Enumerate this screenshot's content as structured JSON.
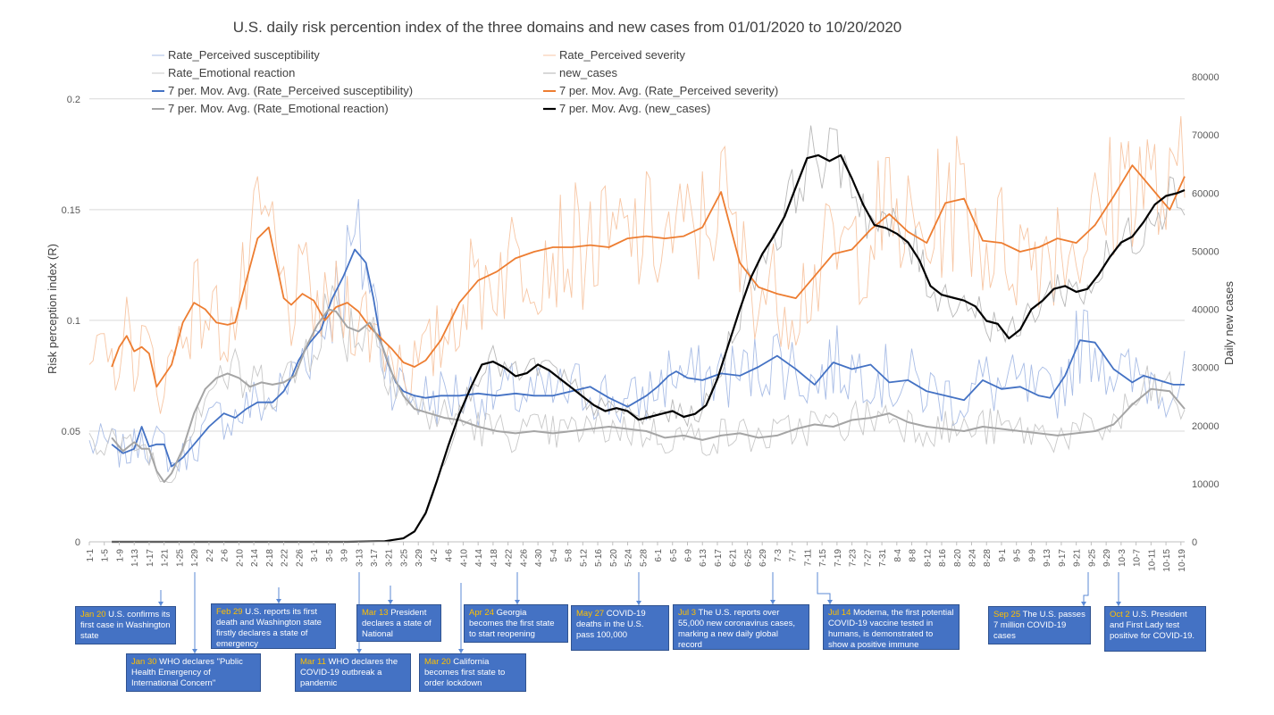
{
  "chart_data": {
    "type": "line",
    "title": "U.S. daily risk percention index of the three domains and new cases from 01/01/2020 to 10/20/2020",
    "ylabel": "Risk perception index (R)",
    "y2label": "Daily new cases",
    "ylim": [
      0,
      0.21
    ],
    "y2lim": [
      0,
      80000
    ],
    "yticks": [
      "0",
      "0.05",
      "0.1",
      "0.15",
      "0.2"
    ],
    "y2ticks": [
      "0",
      "10000",
      "20000",
      "30000",
      "40000",
      "50000",
      "60000",
      "70000",
      "80000"
    ],
    "xlim_day": [
      1,
      294
    ],
    "xlabels": [
      "1-1",
      "1-5",
      "1-9",
      "1-13",
      "1-17",
      "1-21",
      "1-25",
      "1-29",
      "2-2",
      "2-6",
      "2-10",
      "2-14",
      "2-18",
      "2-22",
      "2-26",
      "3-1",
      "3-5",
      "3-9",
      "3-13",
      "3-17",
      "3-21",
      "3-25",
      "3-29",
      "4-2",
      "4-6",
      "4-10",
      "4-14",
      "4-18",
      "4-22",
      "4-26",
      "4-30",
      "5-4",
      "5-8",
      "5-12",
      "5-16",
      "5-20",
      "5-24",
      "5-28",
      "6-1",
      "6-5",
      "6-9",
      "6-13",
      "6-17",
      "6-21",
      "6-25",
      "6-29",
      "7-3",
      "7-7",
      "7-11",
      "7-15",
      "7-19",
      "7-23",
      "7-27",
      "7-31",
      "8-4",
      "8-8",
      "8-12",
      "8-16",
      "8-20",
      "8-24",
      "8-28",
      "9-1",
      "9-5",
      "9-9",
      "9-13",
      "9-17",
      "9-21",
      "9-25",
      "9-29",
      "10-3",
      "10-7",
      "10-11",
      "10-15",
      "10-19"
    ],
    "legend": [
      {
        "name": "Rate_Perceived susceptibility",
        "color": "#a9bde6",
        "width": 1,
        "key": "ps_raw"
      },
      {
        "name": "Rate_Perceived severity",
        "color": "#f7c6a4",
        "width": 1,
        "key": "sev_raw"
      },
      {
        "name": "Rate_Emotional reaction",
        "color": "#c8c8c8",
        "width": 1,
        "key": "emo_raw"
      },
      {
        "name": "new_cases",
        "color": "#b0b0b0",
        "width": 1,
        "key": "cases_raw"
      },
      {
        "name": "7 per. Mov. Avg. (Rate_Perceived susceptibility)",
        "color": "#4472c4",
        "width": 2,
        "key": "ps_ma"
      },
      {
        "name": "7 per. Mov. Avg. (Rate_Perceived severity)",
        "color": "#ed7d31",
        "width": 2,
        "key": "sev_ma"
      },
      {
        "name": "7 per. Mov. Avg. (Rate_Emotional reaction)",
        "color": "#a5a5a5",
        "width": 2,
        "key": "emo_ma"
      },
      {
        "name": "7 per. Mov. Avg. (new_cases)",
        "color": "#000000",
        "width": 2.2,
        "key": "cases_ma"
      }
    ],
    "series_moving_average": [
      {
        "name": "7 per. Mov. Avg. (Rate_Perceived susceptibility)",
        "axis": "left",
        "day": [
          7,
          10,
          13,
          15,
          17,
          19,
          21,
          23,
          26,
          29,
          33,
          37,
          40,
          43,
          46,
          50,
          53,
          55,
          57,
          60,
          63,
          66,
          69,
          72,
          74,
          75,
          77,
          79,
          81,
          83,
          85,
          88,
          91,
          95,
          100,
          105,
          110,
          115,
          120,
          125,
          130,
          135,
          140,
          145,
          150,
          153,
          156,
          158,
          161,
          165,
          170,
          175,
          180,
          185,
          190,
          195,
          200,
          205,
          210,
          215,
          220,
          225,
          230,
          235,
          240,
          245,
          250,
          255,
          258,
          262,
          266,
          270,
          275,
          280,
          283,
          287,
          291,
          294
        ],
        "y": [
          0.044,
          0.04,
          0.042,
          0.052,
          0.043,
          0.044,
          0.044,
          0.034,
          0.038,
          0.044,
          0.052,
          0.058,
          0.056,
          0.06,
          0.063,
          0.063,
          0.068,
          0.074,
          0.082,
          0.09,
          0.096,
          0.11,
          0.12,
          0.132,
          0.128,
          0.126,
          0.11,
          0.09,
          0.08,
          0.072,
          0.068,
          0.066,
          0.065,
          0.066,
          0.066,
          0.067,
          0.066,
          0.067,
          0.066,
          0.066,
          0.068,
          0.07,
          0.065,
          0.061,
          0.066,
          0.07,
          0.075,
          0.077,
          0.074,
          0.073,
          0.076,
          0.075,
          0.079,
          0.084,
          0.078,
          0.071,
          0.081,
          0.078,
          0.08,
          0.072,
          0.073,
          0.068,
          0.066,
          0.064,
          0.073,
          0.069,
          0.07,
          0.066,
          0.065,
          0.075,
          0.091,
          0.09,
          0.078,
          0.072,
          0.075,
          0.073,
          0.071,
          0.071
        ]
      },
      {
        "name": "7 per. Mov. Avg. (Rate_Perceived severity)",
        "axis": "left",
        "day": [
          7,
          9,
          11,
          13,
          15,
          17,
          19,
          21,
          23,
          26,
          29,
          32,
          35,
          38,
          40,
          43,
          46,
          49,
          53,
          55,
          58,
          61,
          64,
          67,
          70,
          73,
          76,
          79,
          82,
          85,
          88,
          91,
          95,
          100,
          105,
          110,
          115,
          120,
          125,
          130,
          135,
          140,
          145,
          150,
          155,
          160,
          165,
          170,
          175,
          180,
          185,
          190,
          195,
          200,
          205,
          210,
          215,
          220,
          225,
          230,
          235,
          240,
          245,
          250,
          255,
          260,
          265,
          270,
          275,
          280,
          285,
          290,
          294
        ],
        "y": [
          0.079,
          0.088,
          0.093,
          0.086,
          0.088,
          0.085,
          0.07,
          0.075,
          0.08,
          0.099,
          0.108,
          0.105,
          0.099,
          0.098,
          0.099,
          0.118,
          0.137,
          0.142,
          0.11,
          0.107,
          0.112,
          0.109,
          0.1,
          0.106,
          0.108,
          0.104,
          0.097,
          0.092,
          0.087,
          0.081,
          0.079,
          0.082,
          0.091,
          0.108,
          0.118,
          0.122,
          0.128,
          0.131,
          0.133,
          0.133,
          0.134,
          0.133,
          0.137,
          0.138,
          0.137,
          0.138,
          0.142,
          0.158,
          0.126,
          0.115,
          0.112,
          0.11,
          0.12,
          0.13,
          0.132,
          0.141,
          0.148,
          0.14,
          0.135,
          0.153,
          0.155,
          0.136,
          0.135,
          0.131,
          0.133,
          0.137,
          0.135,
          0.143,
          0.156,
          0.17,
          0.16,
          0.15,
          0.165
        ]
      },
      {
        "name": "7 per. Mov. Avg. (Rate_Emotional reaction)",
        "axis": "left",
        "day": [
          7,
          10,
          13,
          15,
          17,
          19,
          21,
          23,
          26,
          29,
          32,
          35,
          38,
          41,
          44,
          47,
          50,
          53,
          56,
          59,
          62,
          65,
          67,
          70,
          73,
          76,
          79,
          82,
          85,
          88,
          92,
          96,
          100,
          105,
          110,
          115,
          120,
          125,
          130,
          135,
          140,
          145,
          150,
          155,
          160,
          165,
          170,
          175,
          180,
          185,
          190,
          195,
          200,
          205,
          210,
          215,
          220,
          225,
          230,
          235,
          240,
          245,
          250,
          255,
          260,
          265,
          270,
          275,
          280,
          285,
          290,
          294
        ],
        "y": [
          0.047,
          0.041,
          0.045,
          0.042,
          0.042,
          0.032,
          0.027,
          0.031,
          0.042,
          0.058,
          0.069,
          0.074,
          0.076,
          0.074,
          0.07,
          0.072,
          0.071,
          0.072,
          0.075,
          0.088,
          0.098,
          0.105,
          0.104,
          0.097,
          0.095,
          0.099,
          0.09,
          0.076,
          0.066,
          0.06,
          0.058,
          0.056,
          0.055,
          0.052,
          0.05,
          0.049,
          0.05,
          0.049,
          0.05,
          0.051,
          0.052,
          0.051,
          0.05,
          0.047,
          0.048,
          0.046,
          0.048,
          0.049,
          0.047,
          0.048,
          0.051,
          0.053,
          0.052,
          0.055,
          0.056,
          0.058,
          0.054,
          0.052,
          0.051,
          0.05,
          0.052,
          0.051,
          0.05,
          0.049,
          0.048,
          0.049,
          0.05,
          0.053,
          0.062,
          0.069,
          0.068,
          0.06
        ]
      },
      {
        "name": "7 per. Mov. Avg. (new_cases)",
        "axis": "right",
        "day": [
          7,
          30,
          50,
          70,
          80,
          85,
          88,
          91,
          94,
          97,
          100,
          103,
          106,
          109,
          112,
          115,
          118,
          121,
          124,
          127,
          130,
          133,
          136,
          139,
          142,
          145,
          148,
          151,
          154,
          157,
          160,
          163,
          166,
          169,
          172,
          175,
          178,
          181,
          184,
          187,
          190,
          193,
          196,
          199,
          202,
          205,
          208,
          211,
          214,
          217,
          220,
          223,
          226,
          229,
          232,
          235,
          238,
          241,
          244,
          247,
          250,
          253,
          256,
          259,
          262,
          265,
          268,
          271,
          274,
          277,
          280,
          283,
          286,
          289,
          292,
          294
        ],
        "y": [
          0,
          0,
          0,
          0,
          100,
          600,
          1800,
          5000,
          10500,
          16500,
          22000,
          26500,
          30500,
          31000,
          30000,
          28500,
          29000,
          30500,
          29500,
          28000,
          26500,
          25000,
          23500,
          22500,
          23000,
          22500,
          21000,
          21500,
          22000,
          22500,
          21500,
          22000,
          23500,
          28000,
          34000,
          40000,
          45500,
          49500,
          52500,
          56000,
          61000,
          66000,
          66500,
          65500,
          66500,
          62500,
          58000,
          54500,
          54000,
          53000,
          51500,
          48500,
          44000,
          42500,
          42000,
          41500,
          40500,
          38000,
          37500,
          35000,
          36500,
          40000,
          41500,
          43500,
          44000,
          43000,
          43500,
          46000,
          49000,
          51500,
          52500,
          55000,
          58000,
          59500,
          60000,
          60500
        ]
      }
    ],
    "events": [
      {
        "date": "Jan 20",
        "text": "U.S. confirms its first case in Washington state"
      },
      {
        "date": "Jan 30",
        "text": "WHO declares \"Public Health Emergency of International Concern\""
      },
      {
        "date": "Feb 29",
        "text": "U.S. reports its first death and Washington state firstly declares a state of emergency"
      },
      {
        "date": "Mar 13",
        "text": "President declares a state of National Emergency"
      },
      {
        "date": "Mar 11",
        "text": "WHO declares the COVID-19 outbreak a pandemic"
      },
      {
        "date": "Mar 20",
        "text": "California becomes first state to order lockdown"
      },
      {
        "date": "Apr 24",
        "text": "Georgia becomes the first state to start reopening"
      },
      {
        "date": "May 27",
        "text": "COVID-19 deaths in the U.S. pass 100,000"
      },
      {
        "date": "Jul 3",
        "text": "The U.S. reports over 55,000 new coronavirus cases, marking a new daily global record"
      },
      {
        "date": "Jul 14",
        "text": "Moderna, the first potential COVID-19 vaccine tested in humans, is demonstrated to show a positive immune response"
      },
      {
        "date": "Sep 25",
        "text": "The U.S. passes 7 million COVID-19 cases"
      },
      {
        "date": "Oct 2",
        "text": "U.S. President and First Lady test positive for COVID-19."
      }
    ]
  }
}
